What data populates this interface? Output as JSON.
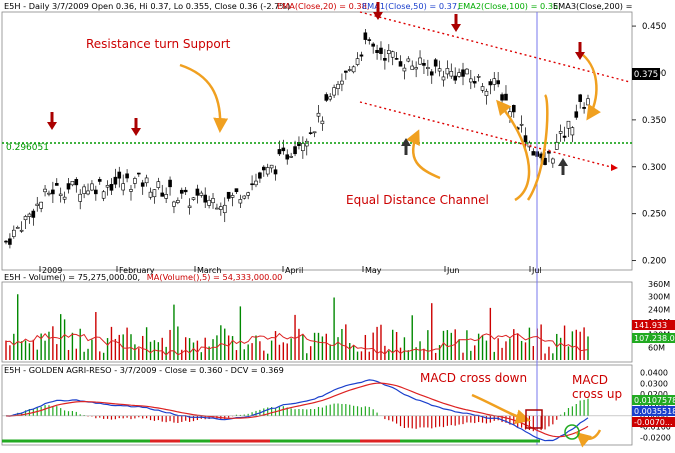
{
  "header": {
    "symbol": "E5H",
    "info": "E5H - Daily 3/7/2009 Open 0.36, Hi 0.37, Lo 0.355, Close 0.36 (-2.7%)",
    "ema20": "EMA(Close,20) = 0.38,",
    "ema50": "EMA1(Close,50) = 0.37,",
    "ema100": "EMA2(Close,100) = 0.35,",
    "ema200": "EMA3(Close,200) ="
  },
  "price_axis": {
    "ticks": [
      "0.450",
      "0.400",
      "0.350",
      "0.300",
      "0.250",
      "0.200"
    ],
    "tick_values": [
      0.45,
      0.4,
      0.35,
      0.3,
      0.25,
      0.2
    ],
    "last_price_label": "0.375",
    "support_label": "0.296051"
  },
  "months": [
    "2009",
    "February",
    "March",
    "April",
    "May",
    "Jun",
    "Jul"
  ],
  "annotations": {
    "resistance": "Resistance turn Support",
    "channel": "Equal Distance Channel",
    "macd_down": "MACD cross down",
    "macd_up": "MACD cross up"
  },
  "volume_panel": {
    "header_a": "E5H - Volume() = 75,275,000.00,",
    "header_b": "MA(Volume(),5) = 54,333,000.00",
    "ticks": [
      "360M",
      "300M",
      "240M",
      "180M",
      "120M",
      "60M"
    ],
    "label_ma": "141.933",
    "label_vol": "107.238.00"
  },
  "macd_panel": {
    "header": "E5H - GOLDEN AGRI-RESO - 3/7/2009 - Close = 0.360 - DCV = 0.369",
    "ticks": [
      "0.0400",
      "0.0300",
      "0.0200",
      "0.0100",
      "0.0000",
      "-0.0100",
      "-0.0200"
    ],
    "label_hist": "0.0107578",
    "label_macd": "0.0035518",
    "label_signal": "-0.0070..."
  },
  "chart_data": {
    "type": "candlestick",
    "title": "E5H - Daily 3/7/2009",
    "x": [
      "Jan 2009",
      "February",
      "March",
      "April",
      "May",
      "Jun",
      "Jul"
    ],
    "price": {
      "ylim": [
        0.19,
        0.465
      ],
      "open": 0.36,
      "high": 0.37,
      "low": 0.355,
      "close": 0.36,
      "change_pct": -2.7,
      "ema20": 0.38,
      "ema50": 0.37,
      "ema100": 0.35,
      "support_level": 0.296051,
      "last_price": 0.375,
      "approx_close_path": [
        {
          "month": "Jan",
          "close": 0.22
        },
        {
          "month": "Jan-late",
          "close": 0.275
        },
        {
          "month": "Feb",
          "close": 0.28
        },
        {
          "month": "Feb-late",
          "close": 0.285
        },
        {
          "month": "Mar",
          "close": 0.265
        },
        {
          "month": "Mar-late",
          "close": 0.265
        },
        {
          "month": "Apr",
          "close": 0.3
        },
        {
          "month": "Apr-late",
          "close": 0.35
        },
        {
          "month": "May",
          "close": 0.43
        },
        {
          "month": "May-late",
          "close": 0.41
        },
        {
          "month": "Jun",
          "close": 0.4
        },
        {
          "month": "Jun-late",
          "close": 0.385
        },
        {
          "month": "Jul",
          "close": 0.3
        },
        {
          "month": "Jul-late",
          "close": 0.375
        }
      ]
    },
    "volume": {
      "ylim": [
        0,
        360
      ],
      "unit": "M",
      "last_volume": 75275000,
      "ma5": 54333000
    },
    "macd": {
      "ylim": [
        -0.025,
        0.045
      ],
      "histogram": 0.0107578,
      "macd": 0.0035518,
      "signal": -0.007
    }
  },
  "colors": {
    "up": "#000000",
    "down": "#000000",
    "volume_up": "#008800",
    "volume_down": "#cc0000",
    "channel": "#dd0000",
    "support": "#009900",
    "annotation_text": "#cc0000",
    "arrow_orange": "#f0a020",
    "arrow_red": "#aa0000",
    "macd_line": "#1a3fcc",
    "signal_line": "#dd2222",
    "cursor": "#7777ee"
  }
}
